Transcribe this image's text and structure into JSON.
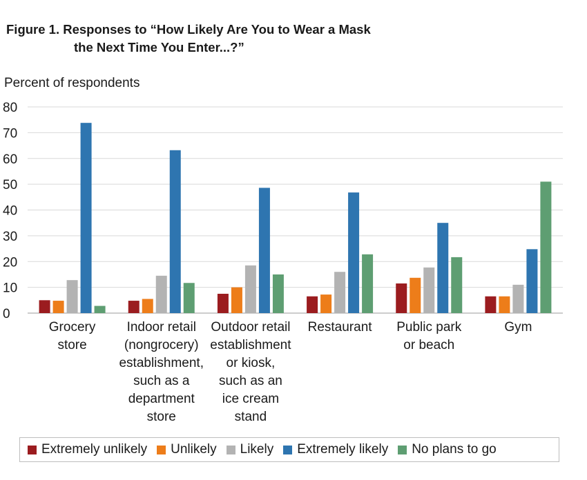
{
  "figure": {
    "title_line1": "Figure 1. Responses to “How Likely Are You to Wear a Mask",
    "title_line2": "the Next Time You Enter...?”"
  },
  "chart_data": {
    "type": "bar",
    "ylabel": "Percent of respondents",
    "ylim": [
      0,
      80
    ],
    "yticks": [
      0,
      10,
      20,
      30,
      40,
      50,
      60,
      70,
      80
    ],
    "grid": true,
    "legend_position": "bottom",
    "categories": [
      [
        "Grocery",
        "store"
      ],
      [
        "Indoor retail",
        "(nongrocery)",
        "establishment,",
        "such as a",
        "department",
        "store"
      ],
      [
        "Outdoor retail",
        "establishment",
        "or kiosk,",
        "such as an",
        "ice cream",
        "stand"
      ],
      [
        "Restaurant"
      ],
      [
        "Public park",
        "or beach"
      ],
      [
        "Gym"
      ]
    ],
    "series": [
      {
        "name": "Extremely unlikely",
        "color": "#9b1c1f",
        "values": [
          5,
          4.8,
          7.5,
          6.5,
          11.5,
          6.5
        ]
      },
      {
        "name": "Unlikely",
        "color": "#ed7d1a",
        "values": [
          4.8,
          5.5,
          10,
          7.2,
          13.7,
          6.5
        ]
      },
      {
        "name": "Likely",
        "color": "#b3b3b3",
        "values": [
          12.8,
          14.5,
          18.5,
          16,
          17.7,
          11
        ]
      },
      {
        "name": "Extremely likely",
        "color": "#2e75b0",
        "values": [
          73.8,
          63.2,
          48.6,
          46.8,
          35,
          24.8
        ]
      },
      {
        "name": "No plans to go",
        "color": "#5e9e72",
        "values": [
          2.8,
          11.7,
          15,
          22.8,
          21.7,
          51
        ]
      }
    ]
  }
}
